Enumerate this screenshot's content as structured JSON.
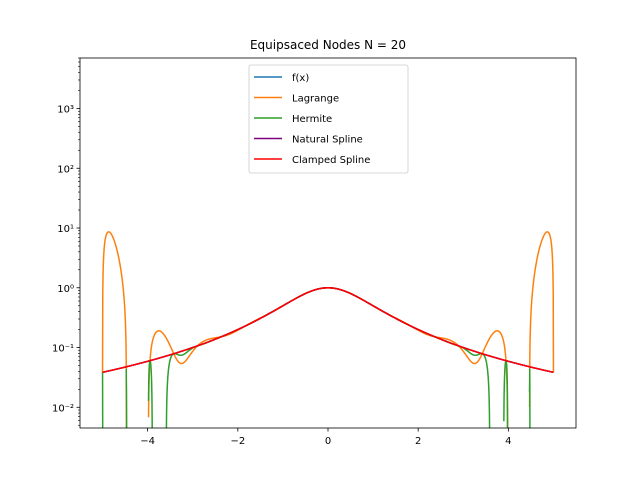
{
  "chart_data": {
    "type": "line",
    "title": "Equipsaced Nodes N = 20",
    "xlabel": "",
    "ylabel": "",
    "xlim": [
      -5.5,
      5.5
    ],
    "ylim": [
      0.0045,
      7000
    ],
    "yscale": "log",
    "grid": false,
    "legend_position": "top-center",
    "x_ticks": [
      -4,
      -2,
      0,
      2,
      4
    ],
    "x_tick_labels": [
      "−4",
      "−2",
      "0",
      "2",
      "4"
    ],
    "y_ticks": [
      0.01,
      0.1,
      1,
      10,
      100,
      1000
    ],
    "y_tick_labels": [
      "10⁻²",
      "10⁻¹",
      "10⁰",
      "10¹",
      "10²",
      "10³"
    ],
    "function": "1/(1+x^2)",
    "nodes": 20,
    "domain": [
      -5,
      5
    ],
    "series": [
      {
        "name": "f(x)",
        "color": "#1f77b4"
      },
      {
        "name": "Lagrange",
        "color": "#ff7f0e"
      },
      {
        "name": "Hermite",
        "color": "#2ca02c"
      },
      {
        "name": "Natural Spline",
        "color": "#800080"
      },
      {
        "name": "Clamped Spline",
        "color": "#ff0000"
      }
    ]
  }
}
